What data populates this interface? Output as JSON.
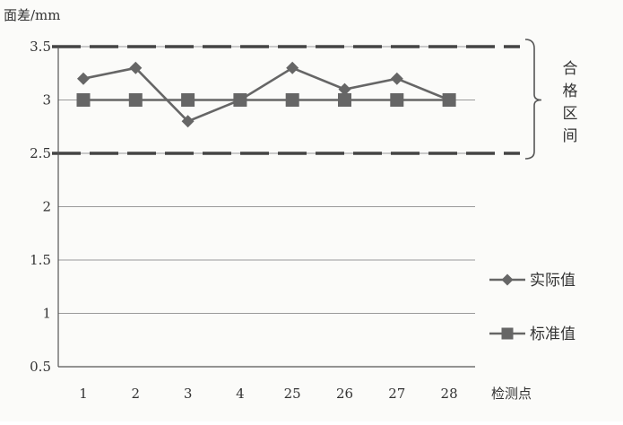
{
  "chart_data": {
    "type": "line",
    "ylabel": "面差/mm",
    "xlabel": "检测点",
    "categories": [
      "1",
      "2",
      "3",
      "4",
      "25",
      "26",
      "27",
      "28"
    ],
    "ylim": [
      0.5,
      3.5
    ],
    "yticks": [
      "0.5",
      "1",
      "1.5",
      "2",
      "2.5",
      "3",
      "3.5"
    ],
    "grid": true,
    "legend_position": "right",
    "series": [
      {
        "name": "实际值",
        "marker": "diamond",
        "color": "#666666",
        "values": [
          3.2,
          3.3,
          2.8,
          3.0,
          3.3,
          3.1,
          3.2,
          3.0
        ]
      },
      {
        "name": "标准值",
        "marker": "square",
        "color": "#666666",
        "values": [
          3.0,
          3.0,
          3.0,
          3.0,
          3.0,
          3.0,
          3.0,
          3.0
        ]
      }
    ],
    "limits": [
      {
        "value": 3.5,
        "style": "dashed"
      },
      {
        "value": 2.5,
        "style": "dashed"
      }
    ],
    "bracket_label": "合格区间"
  }
}
